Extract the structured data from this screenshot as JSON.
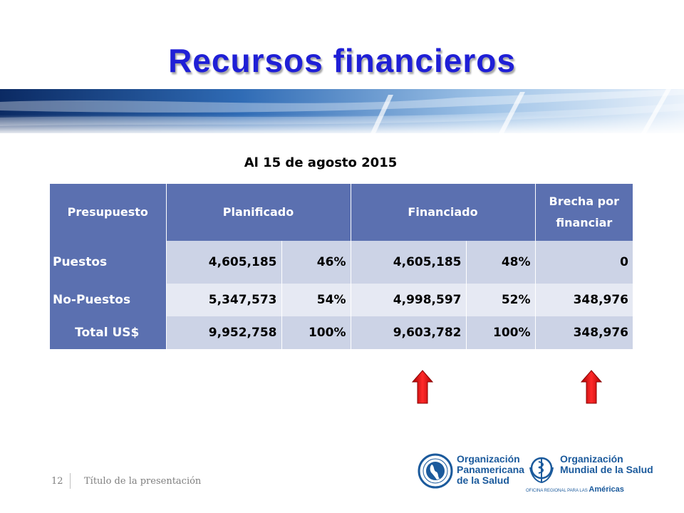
{
  "slide": {
    "title": "Recursos financieros",
    "subtitle": "Al 15 de agosto 2015",
    "slide_number": "12",
    "footer_title": "Título de la presentación"
  },
  "table": {
    "headers": {
      "presupuesto": "Presupuesto",
      "planificado": "Planificado",
      "financiado": "Financiado",
      "brecha_line1": "Brecha por",
      "brecha_line2": "financiar"
    },
    "rows": [
      {
        "label": "Puestos",
        "planificado": "4,605,185",
        "planificado_pct": "46%",
        "financiado": "4,605,185",
        "financiado_pct": "48%",
        "brecha": "0"
      },
      {
        "label": "No-Puestos",
        "planificado": "5,347,573",
        "planificado_pct": "54%",
        "financiado": "4,998,597",
        "financiado_pct": "52%",
        "brecha": "348,976"
      },
      {
        "label": "Total US$",
        "planificado": "9,952,758",
        "planificado_pct": "100%",
        "financiado": "9,603,782",
        "financiado_pct": "100%",
        "brecha": "348,976"
      }
    ]
  },
  "logos": {
    "paho_line1": "Organización",
    "paho_line2": "Panamericana",
    "paho_line3": "de la Salud",
    "who_line1": "Organización",
    "who_line2": "Mundial de la Salud",
    "who_region_prefix": "OFICINA REGIONAL PARA LAS",
    "who_region": "Américas"
  },
  "colors": {
    "title": "#1f1fd6",
    "header_bg": "#5b70b0",
    "row_dark": "#ccd3e6",
    "row_light": "#e6e9f3",
    "arrow": "#e01010",
    "logo_blue": "#1b5a9c"
  },
  "icons": [
    "up-arrow-icon",
    "paho-logo-icon",
    "who-logo-icon"
  ]
}
